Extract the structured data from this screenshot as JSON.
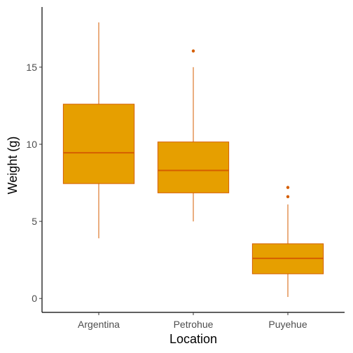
{
  "chart_data": {
    "type": "box",
    "xlabel": "Location",
    "ylabel": "Weight (g)",
    "categories": [
      "Argentina",
      "Petrohue",
      "Puyehue"
    ],
    "ylim": [
      -0.9,
      18.9
    ],
    "yticks": [
      0,
      5,
      10,
      15
    ],
    "boxes": [
      {
        "category": "Argentina",
        "whisker_low": 3.9,
        "q1": 7.45,
        "median": 9.45,
        "q3": 12.6,
        "whisker_high": 17.9,
        "outliers": []
      },
      {
        "category": "Petrohue",
        "whisker_low": 5.0,
        "q1": 6.85,
        "median": 8.3,
        "q3": 10.15,
        "whisker_high": 15.0,
        "outliers": [
          16.05
        ]
      },
      {
        "category": "Puyehue",
        "whisker_low": 0.1,
        "q1": 1.6,
        "median": 2.6,
        "q3": 3.55,
        "whisker_high": 6.1,
        "outliers": [
          6.6,
          7.2
        ]
      }
    ],
    "grid": false,
    "legend": "none",
    "colors": {
      "fill": "#E69F00",
      "stroke": "#D55E00"
    }
  }
}
